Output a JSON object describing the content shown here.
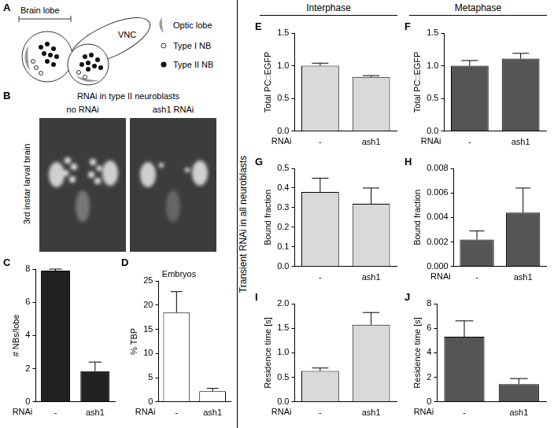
{
  "figure": {
    "side_label": "Transient RNAi in all neuroblasts",
    "column_heads": [
      "Interphase",
      "Metaphase"
    ]
  },
  "diagram": {
    "panel": "A",
    "brain_lobe": "Brain lobe",
    "vnc": "VNC",
    "legend_items": [
      {
        "label": "Optic lobe",
        "marker": "crescent"
      },
      {
        "label": "Type I NB",
        "marker": "open"
      },
      {
        "label": "Type II NB",
        "marker": "filled"
      }
    ]
  },
  "images": {
    "panel": "B",
    "title": "RNAi in type II neuroblasts",
    "columns": [
      "no RNAi",
      "ash1 RNAi"
    ],
    "row_label": "3rd instar larval brain"
  },
  "chart_data": [
    {
      "panel": "C",
      "type": "bar",
      "categories": [
        "-",
        "ash1"
      ],
      "values": [
        7.9,
        1.85
      ],
      "errors": [
        0.1,
        0.55
      ],
      "color": "#222222",
      "y_label": "# NBs/lobe",
      "x_label": "RNAi",
      "ylim": [
        0,
        8
      ],
      "yticks": [
        0,
        2,
        4,
        6,
        8
      ],
      "grid": false
    },
    {
      "panel": "D",
      "type": "bar",
      "title": "Embryos",
      "categories": [
        "-",
        "ash1"
      ],
      "values": [
        18.5,
        2.2
      ],
      "errors": [
        4.3,
        0.6
      ],
      "color": "#ffffff",
      "y_label": "% TBP",
      "x_label": "RNAi",
      "ylim": [
        0,
        25
      ],
      "yticks": [
        0,
        5,
        10,
        15,
        20,
        25
      ],
      "grid": false
    },
    {
      "panel": "E",
      "type": "bar",
      "categories": [
        "-",
        "ash1"
      ],
      "values": [
        1.0,
        0.83
      ],
      "errors": [
        0.04,
        0.02
      ],
      "color": "#d9d9d9",
      "y_label": "Total PC::EGFP",
      "x_label": "RNAi",
      "ylim": [
        0,
        1.5
      ],
      "yticks": [
        {
          "value": 0,
          "label": "0.0"
        },
        0.5,
        {
          "value": 1,
          "label": "1.0"
        },
        1.5
      ],
      "grid": false
    },
    {
      "panel": "F",
      "type": "bar",
      "categories": [
        "-",
        "ash1"
      ],
      "values": [
        1.0,
        1.11
      ],
      "errors": [
        0.08,
        0.08
      ],
      "color": "#555555",
      "y_label": "Total PC::EGFP",
      "x_label": "RNAi",
      "ylim": [
        0,
        1.5
      ],
      "yticks": [
        {
          "value": 0,
          "label": "0.0"
        },
        0.5,
        {
          "value": 1,
          "label": "1.0"
        },
        1.5
      ],
      "grid": false
    },
    {
      "panel": "G",
      "type": "bar",
      "categories": [
        "-",
        "ash1"
      ],
      "values": [
        0.38,
        0.32
      ],
      "errors": [
        0.07,
        0.08
      ],
      "color": "#d9d9d9",
      "y_label": "Bound fraction",
      "ylim": [
        0,
        0.5
      ],
      "yticks": [
        {
          "value": 0,
          "label": "0.0"
        },
        0.1,
        0.2,
        0.3,
        0.4,
        0.5
      ],
      "grid": false
    },
    {
      "panel": "H",
      "type": "bar",
      "categories": [
        "-",
        "ash1"
      ],
      "values": [
        0.0022,
        0.0044
      ],
      "errors": [
        0.0007,
        0.002
      ],
      "color": "#555555",
      "y_label": "Bound fraction",
      "x_label": "RNAi",
      "ylim": [
        0,
        0.008
      ],
      "yticks": [
        {
          "value": 0,
          "label": "0.000"
        },
        {
          "value": 0.002,
          "label": "0.002"
        },
        {
          "value": 0.004,
          "label": "0.004"
        },
        {
          "value": 0.006,
          "label": "0.006"
        },
        {
          "value": 0.008,
          "label": "0.008"
        }
      ],
      "grid": false
    },
    {
      "panel": "I",
      "type": "bar",
      "categories": [
        "-",
        "ash1"
      ],
      "values": [
        0.63,
        1.57
      ],
      "errors": [
        0.06,
        0.25
      ],
      "color": "#d9d9d9",
      "y_label": "Residence time [s]",
      "x_label": "RNAi",
      "ylim": [
        0,
        2
      ],
      "yticks": [
        {
          "value": 0,
          "label": "0.0"
        },
        0.5,
        {
          "value": 1,
          "label": "1.0"
        },
        1.5,
        {
          "value": 2,
          "label": "2.0"
        }
      ],
      "grid": false
    },
    {
      "panel": "J",
      "type": "bar",
      "categories": [
        "-",
        "ash1"
      ],
      "values": [
        5.3,
        1.45
      ],
      "errors": [
        1.3,
        0.45
      ],
      "color": "#555555",
      "y_label": "Residence time [s]",
      "x_label": "RNAi",
      "ylim": [
        0,
        8
      ],
      "yticks": [
        0,
        2,
        4,
        6,
        8
      ],
      "grid": false
    }
  ]
}
